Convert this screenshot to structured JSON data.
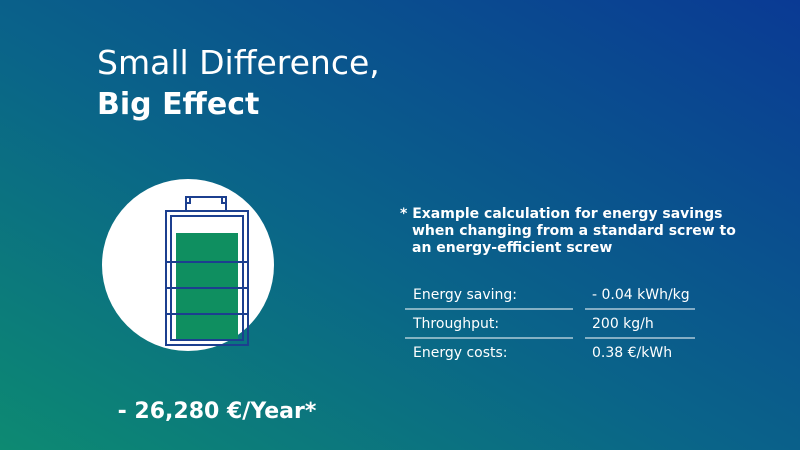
{
  "header": {
    "title_line1": "Small Difference,",
    "title_line2": "Big Effect"
  },
  "result": "- 26,280 €/Year*",
  "note": {
    "lines": [
      "* Example calculation for energy savings",
      "when changing from a standard screw to",
      "an energy-efficient screw"
    ]
  },
  "table": {
    "rows": [
      [
        "Energy saving:",
        "- 0.04 kWh/kg"
      ],
      [
        "Throughput:",
        "200 kg/h"
      ],
      [
        "Energy costs:",
        "0.38 €/kWh"
      ]
    ]
  }
}
